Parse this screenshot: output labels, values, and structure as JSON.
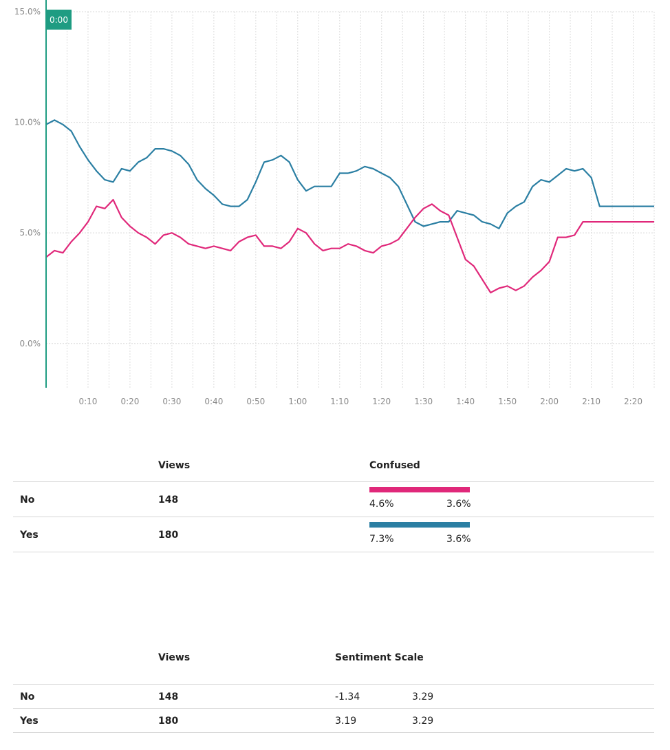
{
  "chart_data": {
    "type": "line",
    "x_unit": "video time",
    "xlim_seconds": [
      0,
      145
    ],
    "ylim": [
      -2,
      15
    ],
    "y_ticks": [
      "15.0%",
      "10.0%",
      "5.0%",
      "0.0%"
    ],
    "y_tick_values": [
      15,
      10,
      5,
      0
    ],
    "x_ticks": [
      "0:10",
      "0:20",
      "0:30",
      "0:40",
      "0:50",
      "1:00",
      "1:10",
      "1:20",
      "1:30",
      "1:40",
      "1:50",
      "2:00",
      "2:10",
      "2:20"
    ],
    "x_tick_seconds": [
      10,
      20,
      30,
      40,
      50,
      60,
      70,
      80,
      90,
      100,
      110,
      120,
      130,
      140
    ],
    "grid": true,
    "playhead_label": "0:00",
    "playhead_seconds": 0,
    "series": [
      {
        "key": "yes",
        "color": "#2b7fa3",
        "x": [
          0,
          2,
          4,
          6,
          8,
          10,
          12,
          14,
          16,
          18,
          20,
          22,
          24,
          26,
          28,
          30,
          32,
          34,
          36,
          38,
          40,
          42,
          44,
          46,
          48,
          50,
          52,
          54,
          56,
          58,
          60,
          62,
          64,
          66,
          68,
          70,
          72,
          74,
          76,
          78,
          80,
          82,
          84,
          86,
          88,
          90,
          92,
          94,
          96,
          98,
          100,
          102,
          104,
          106,
          108,
          110,
          112,
          114,
          116,
          118,
          120,
          122,
          124,
          126,
          128,
          130,
          132,
          134,
          136,
          138,
          140,
          142,
          145
        ],
        "values": [
          9.9,
          10.1,
          9.9,
          9.6,
          8.9,
          8.3,
          7.8,
          7.4,
          7.3,
          7.9,
          7.8,
          8.2,
          8.4,
          8.8,
          8.8,
          8.7,
          8.5,
          8.1,
          7.4,
          7.0,
          6.7,
          6.3,
          6.2,
          6.2,
          6.5,
          7.3,
          8.2,
          8.3,
          8.5,
          8.2,
          7.4,
          6.9,
          7.1,
          7.1,
          7.1,
          7.7,
          7.7,
          7.8,
          8.0,
          7.9,
          7.7,
          7.5,
          7.1,
          6.3,
          5.5,
          5.3,
          5.4,
          5.5,
          5.5,
          6.0,
          5.9,
          5.8,
          5.5,
          5.4,
          5.2,
          5.9,
          6.2,
          6.4,
          7.1,
          7.4,
          7.3,
          7.6,
          7.9,
          7.8,
          7.9,
          7.5,
          6.2,
          6.2,
          6.2,
          6.2,
          6.2,
          6.2,
          6.2
        ]
      },
      {
        "key": "no",
        "color": "#e0287a",
        "x": [
          0,
          2,
          4,
          6,
          8,
          10,
          12,
          14,
          16,
          18,
          20,
          22,
          24,
          26,
          28,
          30,
          32,
          34,
          36,
          38,
          40,
          42,
          44,
          46,
          48,
          50,
          52,
          54,
          56,
          58,
          60,
          62,
          64,
          66,
          68,
          70,
          72,
          74,
          76,
          78,
          80,
          82,
          84,
          86,
          88,
          90,
          92,
          94,
          96,
          98,
          100,
          102,
          104,
          106,
          108,
          110,
          112,
          114,
          116,
          118,
          120,
          122,
          124,
          126,
          128,
          130,
          132,
          134,
          136,
          138,
          140,
          142,
          145
        ],
        "values": [
          3.9,
          4.2,
          4.1,
          4.6,
          5.0,
          5.5,
          6.2,
          6.1,
          6.5,
          5.7,
          5.3,
          5.0,
          4.8,
          4.5,
          4.9,
          5.0,
          4.8,
          4.5,
          4.4,
          4.3,
          4.4,
          4.3,
          4.2,
          4.6,
          4.8,
          4.9,
          4.4,
          4.4,
          4.3,
          4.6,
          5.2,
          5.0,
          4.5,
          4.2,
          4.3,
          4.3,
          4.5,
          4.4,
          4.2,
          4.1,
          4.4,
          4.5,
          4.7,
          5.2,
          5.7,
          6.1,
          6.3,
          6.0,
          5.8,
          4.8,
          3.8,
          3.5,
          2.9,
          2.3,
          2.5,
          2.6,
          2.4,
          2.6,
          3.0,
          3.3,
          3.7,
          4.8,
          4.8,
          4.9,
          5.5,
          5.5,
          5.5,
          5.5,
          5.5,
          5.5,
          5.5,
          5.5,
          5.5
        ]
      }
    ]
  },
  "table_confused": {
    "headers": {
      "views": "Views",
      "metric": "Confused"
    },
    "rows": [
      {
        "label": "No",
        "views": "148",
        "value": "4.6%",
        "baseline": "3.6%",
        "color": "#e0287a"
      },
      {
        "label": "Yes",
        "views": "180",
        "value": "7.3%",
        "baseline": "3.6%",
        "color": "#2b7fa3"
      }
    ]
  },
  "table_sentiment": {
    "headers": {
      "views": "Views",
      "metric": "Sentiment Scale"
    },
    "rows": [
      {
        "label": "No",
        "views": "148",
        "value": "-1.34",
        "baseline": "3.29"
      },
      {
        "label": "Yes",
        "views": "180",
        "value": "3.19",
        "baseline": "3.29"
      }
    ]
  }
}
